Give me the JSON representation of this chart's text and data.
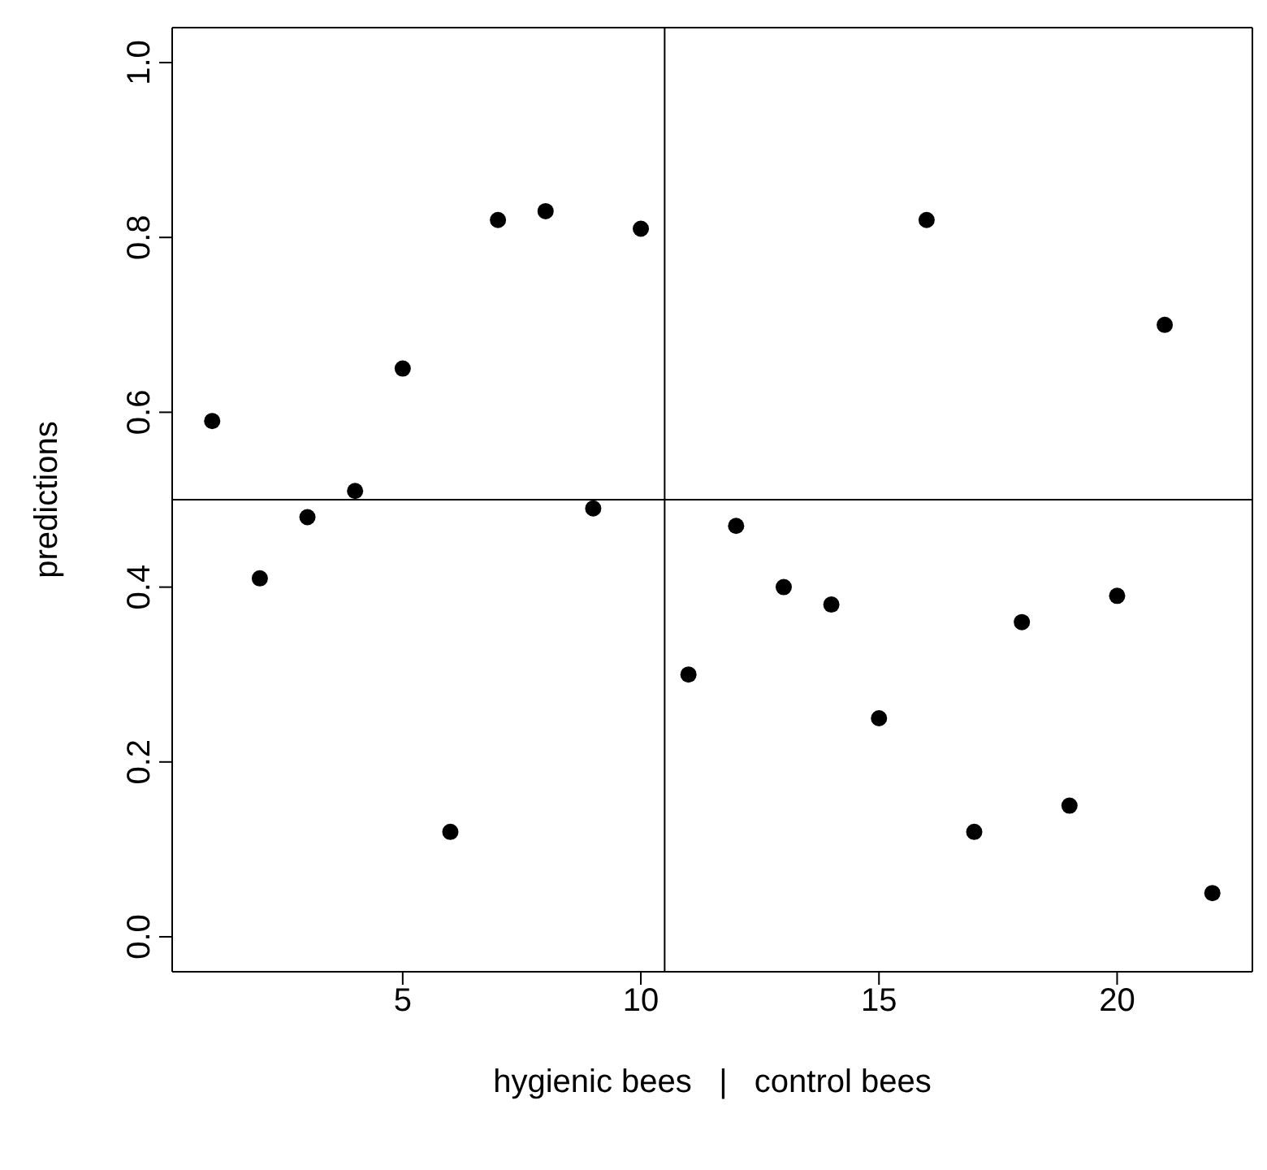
{
  "chart_data": {
    "type": "scatter",
    "xlabel": "hygienic bees   |   control bees",
    "ylabel": "predictions",
    "x": [
      1,
      2,
      3,
      4,
      5,
      6,
      7,
      8,
      9,
      10,
      11,
      12,
      13,
      14,
      15,
      16,
      17,
      18,
      19,
      20,
      21,
      22
    ],
    "series": [
      {
        "color": "#000000",
        "values": [
          0.59,
          0.41,
          0.48,
          0.51,
          0.65,
          0.12,
          0.82,
          0.83,
          0.49,
          0.81,
          0.3,
          0.47,
          0.4,
          0.38,
          0.25,
          0.82,
          0.12,
          0.36,
          0.15,
          0.39,
          0.7,
          0.05
        ]
      }
    ],
    "xlim": [
      0.16,
      22.84
    ],
    "ylim": [
      -0.04,
      1.04
    ],
    "xticks": [
      5,
      10,
      15,
      20
    ],
    "yticks": [
      {
        "value": 0,
        "label": "0.0"
      },
      {
        "value": 0.2,
        "label": "0.2"
      },
      {
        "value": 0.4,
        "label": "0.4"
      },
      {
        "value": 0.6,
        "label": "0.6"
      },
      {
        "value": 0.8,
        "label": "0.8"
      },
      {
        "value": 1,
        "label": "1.0"
      }
    ],
    "ref_lines": [
      {
        "axis": "x",
        "value": 10.5,
        "color": "#000000"
      },
      {
        "axis": "y",
        "value": 0.5,
        "color": "#000000"
      }
    ],
    "marker": "circle"
  }
}
